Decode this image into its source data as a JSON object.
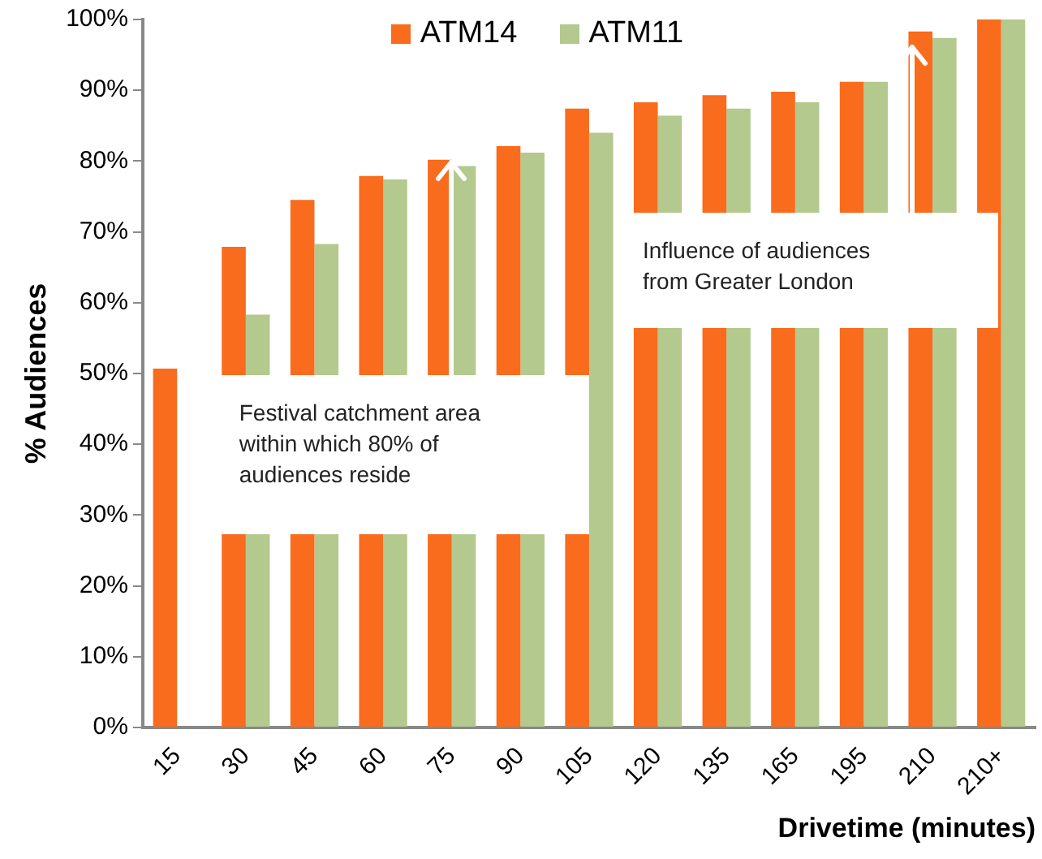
{
  "chart_data": {
    "type": "bar",
    "ylabel": "% Audiences",
    "xlabel": "Drivetime (minutes)",
    "categories": [
      "15",
      "30",
      "45",
      "60",
      "75",
      "90",
      "105",
      "120",
      "135",
      "165",
      "195",
      "210",
      "210+"
    ],
    "series": [
      {
        "name": "ATM14",
        "color": "#f96b1d",
        "values": [
          50.7,
          67.9,
          74.5,
          77.9,
          80.2,
          82.1,
          87.4,
          88.3,
          89.3,
          89.8,
          91.2,
          98.3,
          100
        ]
      },
      {
        "name": "ATM11",
        "color": "#b3c98e",
        "values": [
          null,
          58.3,
          68.3,
          77.4,
          79.3,
          81.2,
          84.0,
          86.4,
          87.4,
          88.3,
          91.2,
          97.4,
          100
        ]
      }
    ],
    "ylim": [
      0,
      100
    ],
    "yticks": [
      {
        "value": 0,
        "label": "0%"
      },
      {
        "value": 10,
        "label": "10%"
      },
      {
        "value": 20,
        "label": "20%"
      },
      {
        "value": 30,
        "label": "30%"
      },
      {
        "value": 40,
        "label": "40%"
      },
      {
        "value": 50,
        "label": "50%"
      },
      {
        "value": 60,
        "label": "60%"
      },
      {
        "value": 70,
        "label": "70%"
      },
      {
        "value": 80,
        "label": "80%"
      },
      {
        "value": 90,
        "label": "90%"
      },
      {
        "value": 100,
        "label": "100%"
      }
    ],
    "grid": false,
    "legend": "top",
    "annotations": [
      {
        "text": "Festival catchment area within which 80% of audiences reside",
        "x": "75",
        "y": 80
      },
      "Influence of audiences from Greater London"
    ]
  }
}
